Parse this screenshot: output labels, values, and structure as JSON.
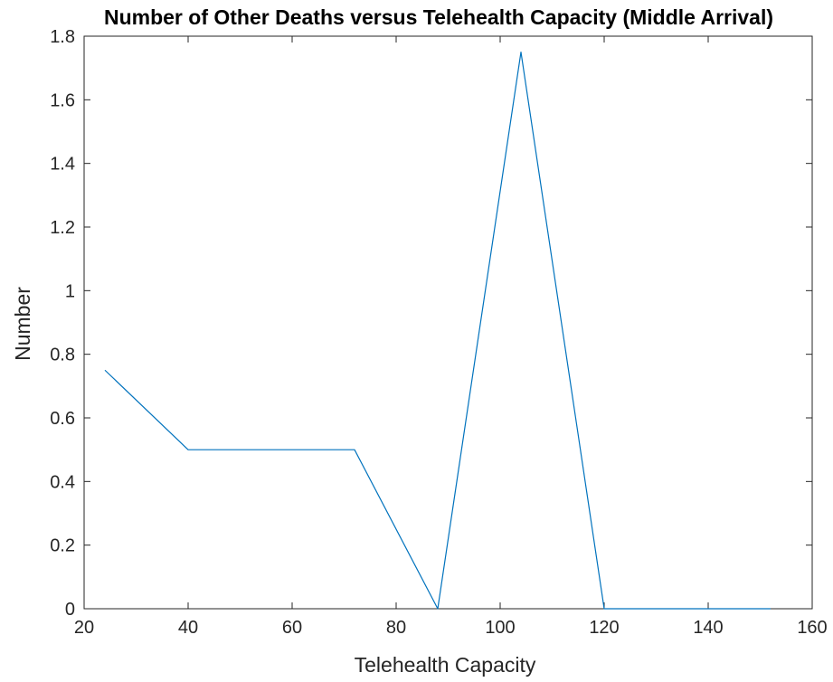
{
  "chart_data": {
    "type": "line",
    "title": "Number of Other Deaths versus Telehealth Capacity (Middle Arrival)",
    "xlabel": "Telehealth Capacity",
    "ylabel": "Number",
    "xlim": [
      20,
      160
    ],
    "ylim": [
      0,
      1.8
    ],
    "xticks": [
      20,
      40,
      60,
      80,
      100,
      120,
      140,
      160
    ],
    "yticks": [
      0,
      0.2,
      0.4,
      0.6,
      0.8,
      1,
      1.2,
      1.4,
      1.6,
      1.8
    ],
    "xtick_labels": [
      "20",
      "40",
      "60",
      "80",
      "100",
      "120",
      "140",
      "160"
    ],
    "ytick_labels": [
      "0",
      "0.2",
      "0.4",
      "0.6",
      "0.8",
      "1",
      "1.2",
      "1.4",
      "1.6",
      "1.8"
    ],
    "grid": false,
    "series": [
      {
        "color": "#0072BD",
        "x": [
          24,
          40,
          56,
          72,
          88,
          104,
          120,
          136,
          152
        ],
        "y": [
          0.75,
          0.5,
          0.5,
          0.5,
          0,
          1.75,
          0,
          0,
          0
        ]
      }
    ]
  }
}
